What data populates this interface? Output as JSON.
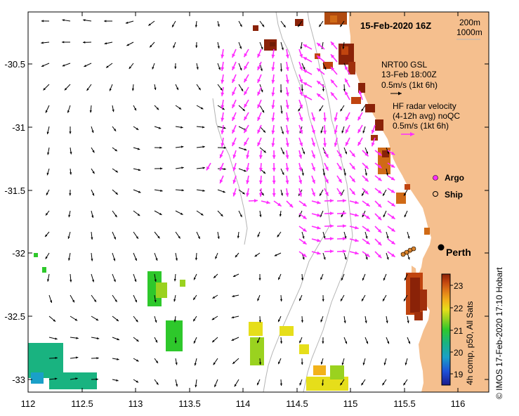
{
  "title": "15-Feb-2020 16Z",
  "isobath_legend": [
    "200m",
    "1000m"
  ],
  "model_label": [
    "NRT00 GSL",
    "13-Feb 18:00Z",
    "0.5m/s (1kt 6h)"
  ],
  "radar_label": [
    "HF radar velocity",
    "(4-12h avg) noQC",
    "0.5m/s (1kt 6h)"
  ],
  "legend": {
    "argo": "Argo",
    "ship": "Ship"
  },
  "city": "Perth",
  "colorbar": {
    "ticks": [
      "23",
      "22",
      "21",
      "20",
      "19"
    ],
    "label": "4h comp, p50, All Sats",
    "colors": [
      "#1a1a8c",
      "#1f4fd6",
      "#1aa0c8",
      "#19b380",
      "#2ec82b",
      "#9ad21f",
      "#e6de1a",
      "#f2b21a",
      "#e07818",
      "#c0440f",
      "#8a2208"
    ]
  },
  "x_axis": {
    "ticks": [
      "112",
      "112.5",
      "113",
      "113.5",
      "114",
      "114.5",
      "115",
      "115.5",
      "116"
    ]
  },
  "y_axis": {
    "ticks": [
      "-30.5",
      "-31",
      "-31.5",
      "-32",
      "-32.5",
      "-33"
    ]
  },
  "credit": "© IMOS 17-Feb-2020 17:10 Hobart",
  "colors": {
    "land": "#f5bf8e",
    "radar_arrow": "#ff2dff",
    "model_arrow": "#000000",
    "isobath": "#b4b4b4"
  }
}
